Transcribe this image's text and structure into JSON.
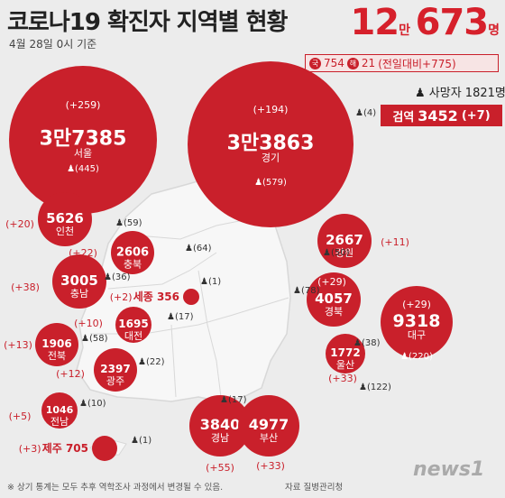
{
  "title": "코로나19 확진자 지역별 현황",
  "subtitle": "4월 28일 0시 기준",
  "total": {
    "man": "12",
    "unit_man": "만",
    "rest": "673",
    "unit": "명"
  },
  "breakdown": {
    "domestic_mark": "국",
    "domestic": "754",
    "overseas_mark": "해",
    "overseas": "21",
    "change": "(전일대비+775)"
  },
  "deaths": "사망자 1821명",
  "quarantine": {
    "label": "검역",
    "value": "3452",
    "change": "(+7)",
    "person": "(4)"
  },
  "regions": [
    {
      "name": "서울",
      "value": "3만7385",
      "change": "(+259)",
      "deaths": "(445)"
    },
    {
      "name": "경기",
      "value": "3만3863",
      "change": "(+194)",
      "deaths": "(579)"
    },
    {
      "name": "인천",
      "value": "5626",
      "change": "(+20)",
      "deaths": "(59)"
    },
    {
      "name": "강원",
      "value": "2667",
      "change": "(+11)",
      "deaths": "(50)"
    },
    {
      "name": "충북",
      "value": "2606",
      "change": "(+22)",
      "deaths": "(64)"
    },
    {
      "name": "충남",
      "value": "3005",
      "change": "(+38)",
      "deaths": "(36)"
    },
    {
      "name": "세종",
      "value": "356",
      "change": "(+2)",
      "deaths": "(1)"
    },
    {
      "name": "대전",
      "value": "1695",
      "change": "(+10)",
      "deaths": "(17)"
    },
    {
      "name": "경북",
      "value": "4057",
      "change": "(+29)",
      "deaths": "(78)"
    },
    {
      "name": "대구",
      "value": "9318",
      "change": "(+29)",
      "deaths": "(220)"
    },
    {
      "name": "전북",
      "value": "1906",
      "change": "(+13)",
      "deaths": "(58)"
    },
    {
      "name": "광주",
      "value": "2397",
      "change": "(+12)",
      "deaths": "(22)"
    },
    {
      "name": "울산",
      "value": "1772",
      "change": "(+33)",
      "deaths": "(38)"
    },
    {
      "name": "전남",
      "value": "1046",
      "change": "(+5)",
      "deaths": "(10)"
    },
    {
      "name": "경남",
      "value": "3840",
      "change": "(+55)",
      "deaths": "(17)"
    },
    {
      "name": "부산",
      "value": "4977",
      "change": "(+33)",
      "deaths": "(122)"
    },
    {
      "name": "제주",
      "value": "705",
      "change": "(+3)",
      "deaths": "(1)"
    }
  ],
  "footnote": "※ 상기 통계는 모두 추후 역학조사 과정에서 변경될 수 있음.",
  "source": "자료 질병관리청",
  "logo": "news1",
  "colors": {
    "accent": "#c9202b",
    "background": "#ececec",
    "map": "#f7f7f7"
  }
}
